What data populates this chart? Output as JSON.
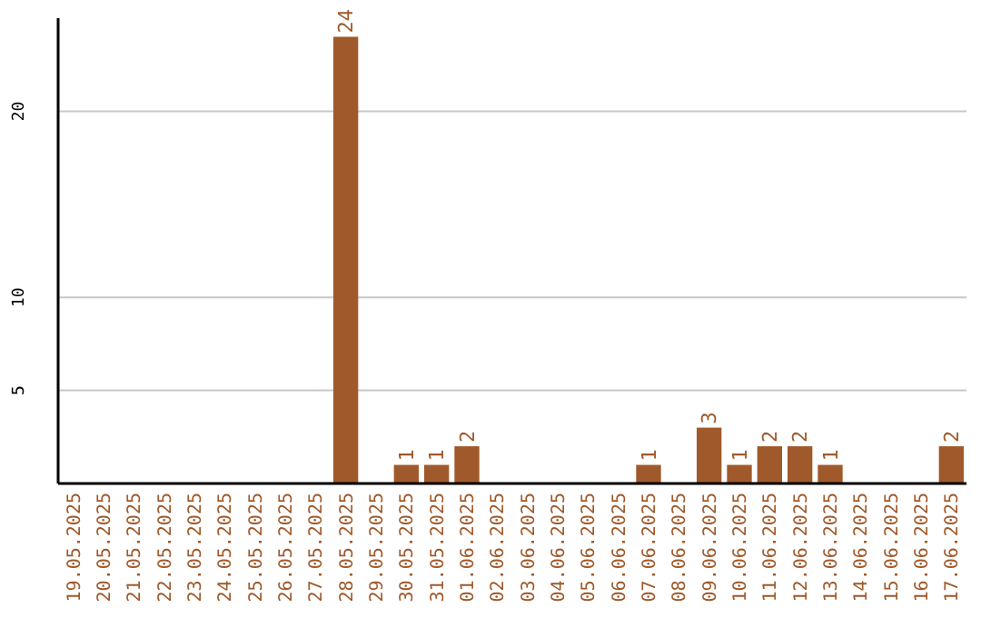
{
  "chart_data": {
    "type": "bar",
    "categories": [
      "19.05.2025",
      "20.05.2025",
      "21.05.2025",
      "22.05.2025",
      "23.05.2025",
      "24.05.2025",
      "25.05.2025",
      "26.05.2025",
      "27.05.2025",
      "28.05.2025",
      "29.05.2025",
      "30.05.2025",
      "31.05.2025",
      "01.06.2025",
      "02.06.2025",
      "03.06.2025",
      "04.06.2025",
      "05.06.2025",
      "06.06.2025",
      "07.06.2025",
      "08.06.2025",
      "09.06.2025",
      "10.06.2025",
      "11.06.2025",
      "12.06.2025",
      "13.06.2025",
      "14.06.2025",
      "15.06.2025",
      "16.06.2025",
      "17.06.2025"
    ],
    "values": [
      0,
      0,
      0,
      0,
      0,
      0,
      0,
      0,
      0,
      24,
      0,
      1,
      1,
      2,
      0,
      0,
      0,
      0,
      0,
      1,
      0,
      3,
      1,
      2,
      2,
      1,
      0,
      0,
      0,
      2
    ],
    "value_labels": [
      null,
      null,
      null,
      null,
      null,
      null,
      null,
      null,
      null,
      "24",
      null,
      "1",
      "1",
      "2",
      null,
      null,
      null,
      null,
      null,
      "1",
      null,
      "3",
      "1",
      "2",
      "2",
      "1",
      null,
      null,
      null,
      "2"
    ],
    "color": "#a0592a",
    "ylim": [
      0,
      25
    ],
    "yticks": [
      5,
      10,
      20
    ],
    "grid": "y"
  }
}
